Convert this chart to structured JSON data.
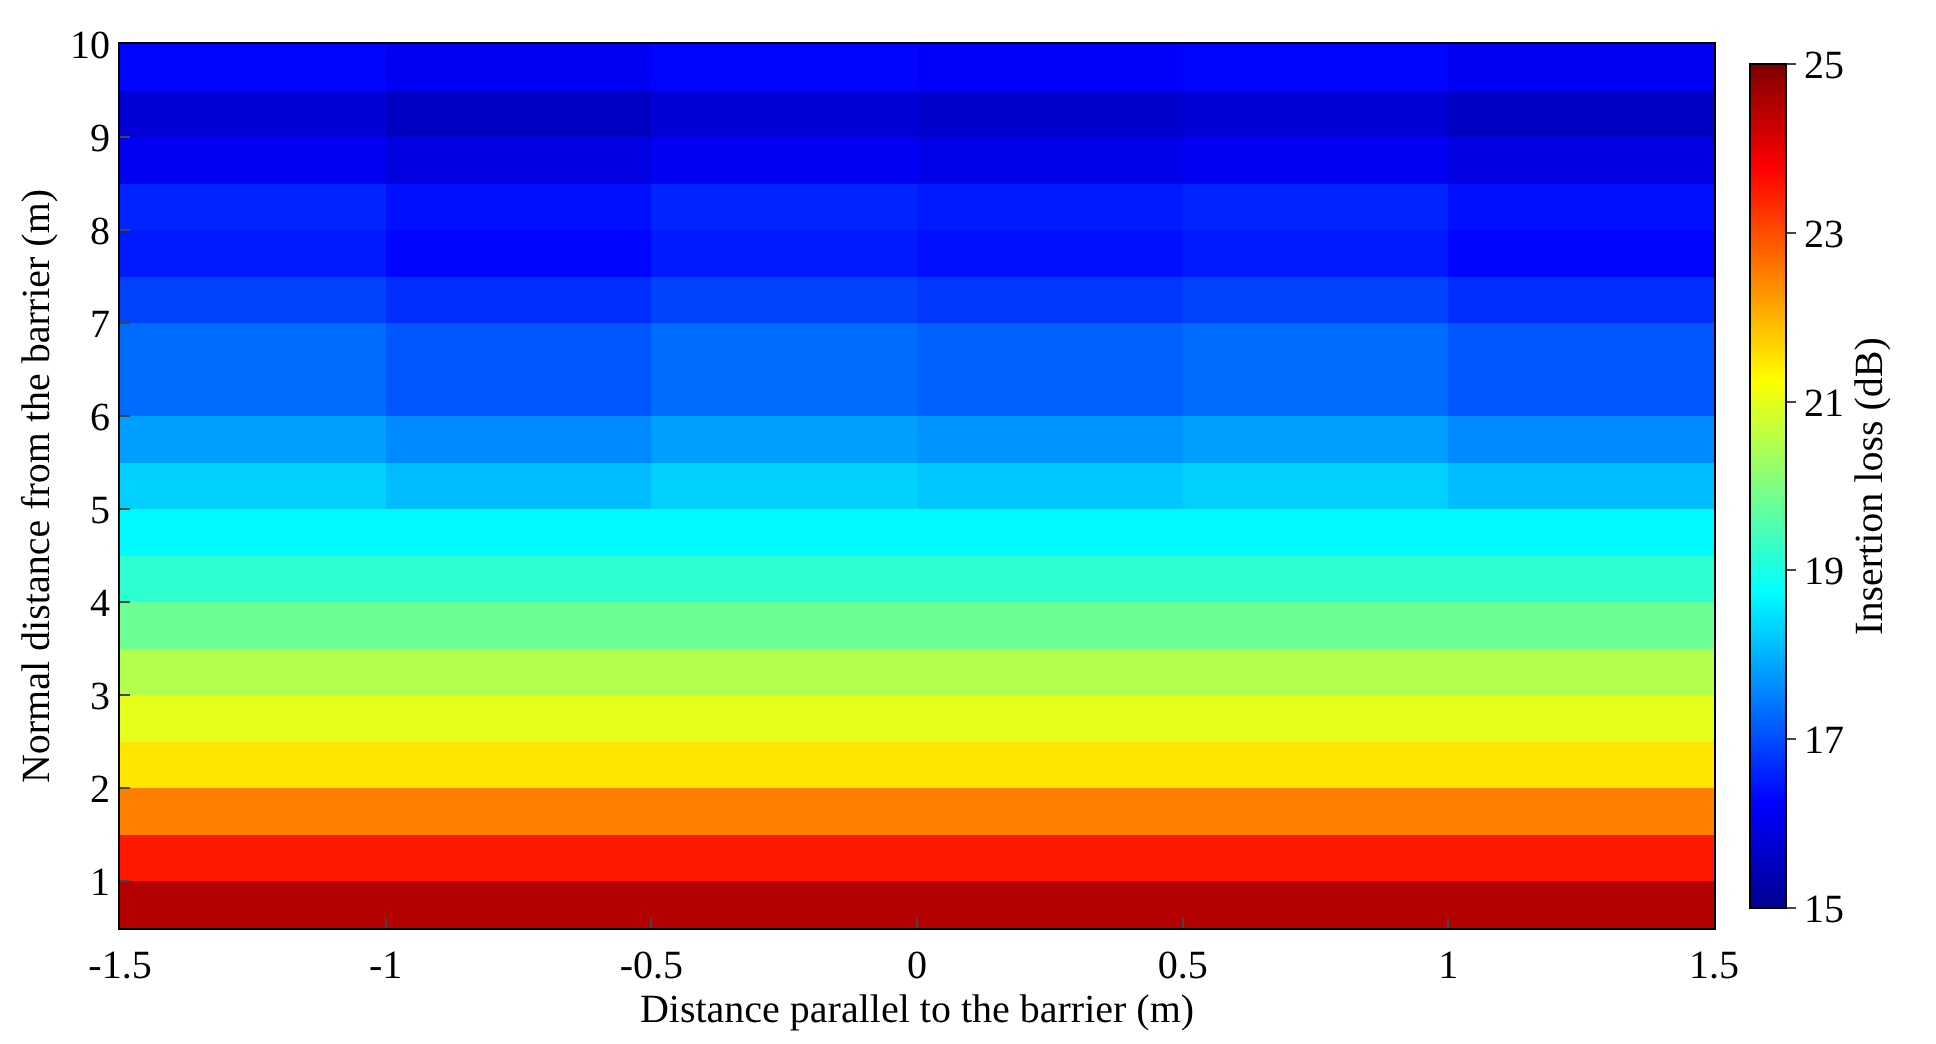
{
  "chart_data": {
    "type": "heatmap",
    "xlabel": "Distance parallel to the barrier (m)",
    "ylabel": "Normal distance from the barrier (m)",
    "clabel": "Insertion loss (dB)",
    "x": [
      -1.25,
      -0.75,
      -0.25,
      0.25,
      0.75,
      1.25
    ],
    "y": [
      9.75,
      9.25,
      8.75,
      8.25,
      7.75,
      7.25,
      6.75,
      6.25,
      5.75,
      5.25,
      4.75,
      4.25,
      3.75,
      3.25,
      2.75,
      2.25,
      1.75,
      1.25,
      0.75
    ],
    "cells": [
      [
        16.3,
        16.1,
        16.3,
        16.2,
        16.3,
        16.1
      ],
      [
        15.8,
        15.6,
        15.8,
        15.7,
        15.8,
        15.6
      ],
      [
        16.1,
        15.9,
        16.1,
        16.0,
        16.1,
        15.9
      ],
      [
        16.6,
        16.4,
        16.6,
        16.5,
        16.6,
        16.4
      ],
      [
        16.5,
        16.3,
        16.5,
        16.4,
        16.5,
        16.3
      ],
      [
        16.9,
        16.7,
        16.9,
        16.8,
        16.9,
        16.7
      ],
      [
        17.3,
        17.1,
        17.3,
        17.2,
        17.3,
        17.1
      ],
      [
        17.3,
        17.1,
        17.3,
        17.2,
        17.3,
        17.1
      ],
      [
        17.8,
        17.6,
        17.8,
        17.7,
        17.8,
        17.6
      ],
      [
        18.3,
        18.1,
        18.3,
        18.2,
        18.3,
        18.1
      ],
      [
        18.7,
        18.7,
        18.7,
        18.7,
        18.7,
        18.7
      ],
      [
        19.2,
        19.2,
        19.2,
        19.2,
        19.2,
        19.2
      ],
      [
        19.8,
        19.8,
        19.8,
        19.8,
        19.8,
        19.8
      ],
      [
        20.5,
        20.5,
        20.5,
        20.5,
        20.5,
        20.5
      ],
      [
        21.0,
        21.0,
        21.0,
        21.0,
        21.0,
        21.0
      ],
      [
        21.5,
        21.5,
        21.5,
        21.5,
        21.5,
        21.5
      ],
      [
        22.5,
        22.5,
        22.5,
        22.5,
        22.5,
        22.5
      ],
      [
        23.5,
        23.5,
        23.5,
        23.5,
        23.5,
        23.5
      ],
      [
        24.5,
        24.5,
        24.5,
        24.5,
        24.5,
        24.5
      ]
    ],
    "xlim": [
      -1.5,
      1.5
    ],
    "xticks": [
      -1.5,
      -1,
      -0.5,
      0,
      0.5,
      1,
      1.5
    ],
    "ylim": [
      0.5,
      10
    ],
    "yticks": [
      1,
      2,
      3,
      4,
      5,
      6,
      7,
      8,
      9,
      10
    ],
    "clim": [
      15,
      25
    ],
    "cticks": [
      15,
      17,
      19,
      21,
      23,
      25
    ]
  }
}
